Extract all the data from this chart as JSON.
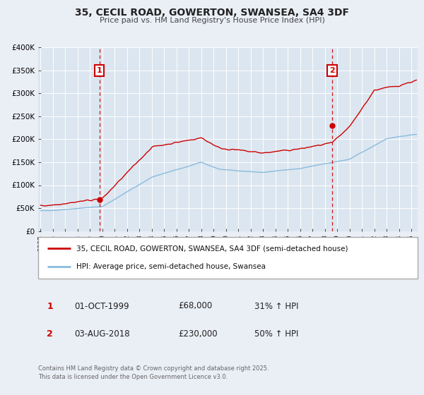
{
  "title": "35, CECIL ROAD, GOWERTON, SWANSEA, SA4 3DF",
  "subtitle": "Price paid vs. HM Land Registry's House Price Index (HPI)",
  "bg_color": "#eaeef5",
  "plot_bg_color": "#dce6f0",
  "grid_color": "#ffffff",
  "red_color": "#cc0000",
  "blue_color": "#88bbdd",
  "marker1_date": 1999.75,
  "marker2_date": 2018.59,
  "vline_color": "#cc0000",
  "legend_label_red": "35, CECIL ROAD, GOWERTON, SWANSEA, SA4 3DF (semi-detached house)",
  "legend_label_blue": "HPI: Average price, semi-detached house, Swansea",
  "table_row1": [
    "1",
    "01-OCT-1999",
    "£68,000",
    "31% ↑ HPI"
  ],
  "table_row2": [
    "2",
    "03-AUG-2018",
    "£230,000",
    "50% ↑ HPI"
  ],
  "footer": "Contains HM Land Registry data © Crown copyright and database right 2025.\nThis data is licensed under the Open Government Licence v3.0.",
  "ylim": [
    0,
    400000
  ],
  "xlim_start": 1994.8,
  "xlim_end": 2025.5,
  "yticks": [
    0,
    50000,
    100000,
    150000,
    200000,
    250000,
    300000,
    350000,
    400000
  ],
  "ytick_labels": [
    "£0",
    "£50K",
    "£100K",
    "£150K",
    "£200K",
    "£250K",
    "£300K",
    "£350K",
    "£400K"
  ],
  "xticks": [
    1995,
    1996,
    1997,
    1998,
    1999,
    2000,
    2001,
    2002,
    2003,
    2004,
    2005,
    2006,
    2007,
    2008,
    2009,
    2010,
    2011,
    2012,
    2013,
    2014,
    2015,
    2016,
    2017,
    2018,
    2019,
    2020,
    2021,
    2022,
    2023,
    2024,
    2025
  ]
}
